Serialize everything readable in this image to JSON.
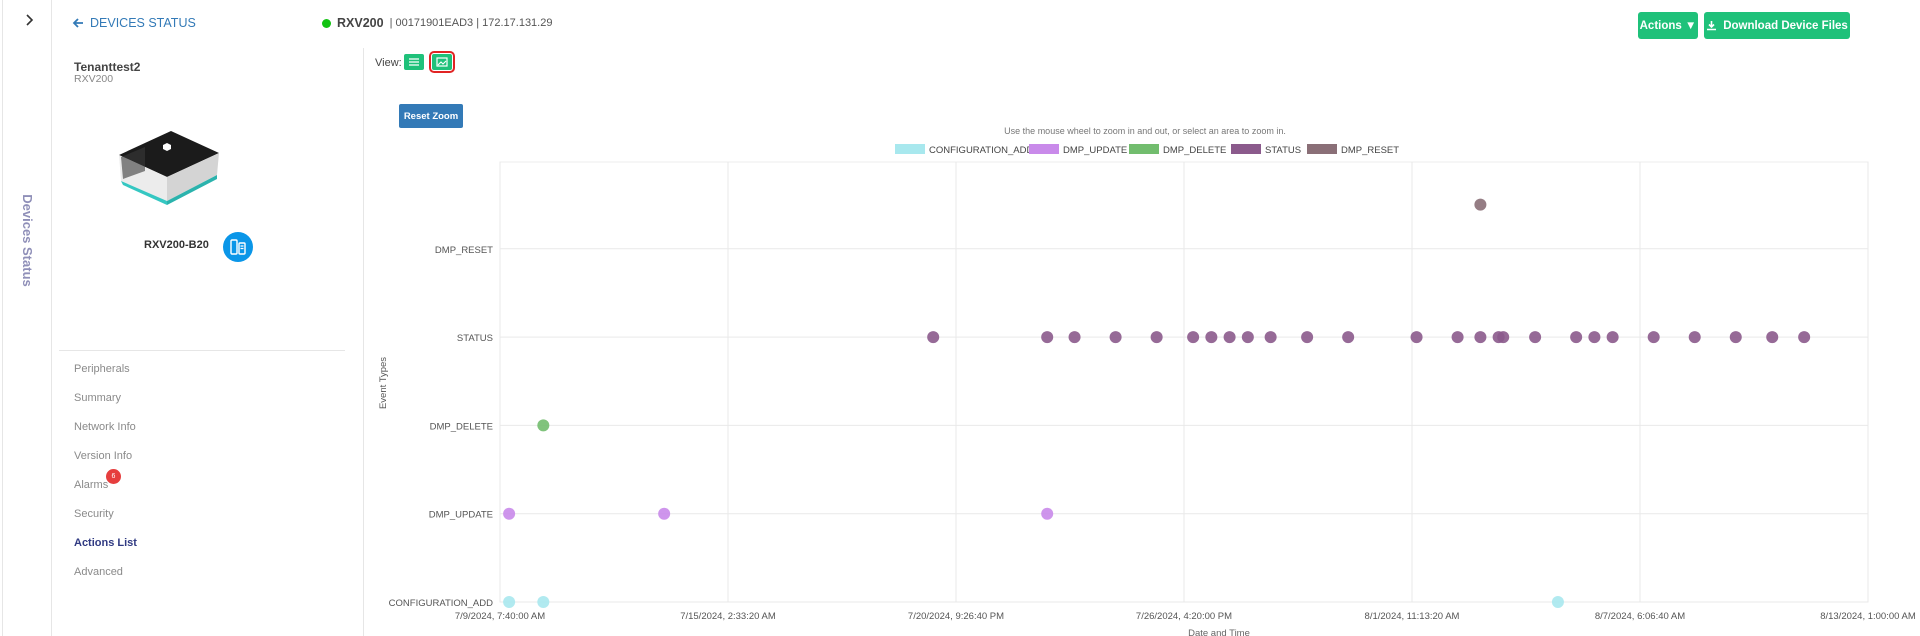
{
  "nav_rail": {
    "title": "Devices Status",
    "toggle_icon": "chevron-right-icon"
  },
  "header": {
    "back_label": "DEVICES STATUS",
    "device_model": "RXV200",
    "device_details": "| 00171901EAD3 | 172.17.131.29",
    "status_color": "#12c312",
    "actions_label": "Actions ▼",
    "download_label": "Download Device Files"
  },
  "device_card": {
    "tenant": "Tenanttest2",
    "model": "RXV200",
    "name": "RXV200-B20"
  },
  "sidebar": {
    "items": [
      {
        "label": "Peripherals"
      },
      {
        "label": "Summary"
      },
      {
        "label": "Network Info"
      },
      {
        "label": "Version Info"
      },
      {
        "label": "Alarms",
        "badge": "6"
      },
      {
        "label": "Security"
      },
      {
        "label": "Actions List",
        "active": true
      },
      {
        "label": "Advanced"
      }
    ]
  },
  "view": {
    "label": "View:"
  },
  "chart_data": {
    "type": "scatter",
    "reset_zoom_label": "Reset Zoom",
    "subtitle": "Use the mouse wheel to zoom in and out, or select an area to zoom in.",
    "xlabel": "Date and Time",
    "ylabel": "Event Types",
    "x_ticks": [
      "7/9/2024, 7:40:00 AM",
      "7/15/2024, 2:33:20 AM",
      "7/20/2024, 9:26:40 PM",
      "7/26/2024, 4:20:00 PM",
      "8/1/2024, 11:13:20 AM",
      "8/7/2024, 6:06:40 AM",
      "8/13/2024, 1:00:00 AM"
    ],
    "y_categories": [
      "CONFIGURATION_ADD",
      "DMP_UPDATE",
      "DMP_DELETE",
      "STATUS",
      "DMP_RESET"
    ],
    "grid": true,
    "legend_position": "top-center",
    "series": [
      {
        "name": "CONFIGURATION_ADD",
        "color": "#a8e8ee",
        "points": [
          [
            0.2,
            0
          ],
          [
            0.95,
            0
          ],
          [
            23.2,
            0
          ]
        ]
      },
      {
        "name": "DMP_UPDATE",
        "color": "#c98aea",
        "points": [
          [
            0.2,
            1
          ],
          [
            3.6,
            1
          ],
          [
            12.0,
            1
          ]
        ]
      },
      {
        "name": "DMP_DELETE",
        "color": "#72bd6e",
        "points": [
          [
            0.95,
            2
          ]
        ]
      },
      {
        "name": "STATUS",
        "color": "#8b5a8c",
        "points": [
          [
            9.5,
            3
          ],
          [
            12.0,
            3
          ],
          [
            12.6,
            3
          ],
          [
            13.5,
            3
          ],
          [
            14.4,
            3
          ],
          [
            15.2,
            3
          ],
          [
            15.6,
            3
          ],
          [
            16.0,
            3
          ],
          [
            16.4,
            3
          ],
          [
            16.9,
            3
          ],
          [
            17.7,
            3
          ],
          [
            18.6,
            3
          ],
          [
            20.1,
            3
          ],
          [
            21.0,
            3
          ],
          [
            21.5,
            3
          ],
          [
            21.9,
            3
          ],
          [
            22.0,
            3
          ],
          [
            22.7,
            3
          ],
          [
            23.6,
            3
          ],
          [
            24.0,
            3
          ],
          [
            24.4,
            3
          ],
          [
            25.3,
            3
          ],
          [
            26.2,
            3
          ],
          [
            27.1,
            3
          ],
          [
            27.9,
            3
          ],
          [
            28.6,
            3
          ]
        ]
      },
      {
        "name": "DMP_RESET",
        "color": "#8a6f77",
        "points": [
          [
            21.5,
            4.5
          ]
        ]
      }
    ]
  }
}
